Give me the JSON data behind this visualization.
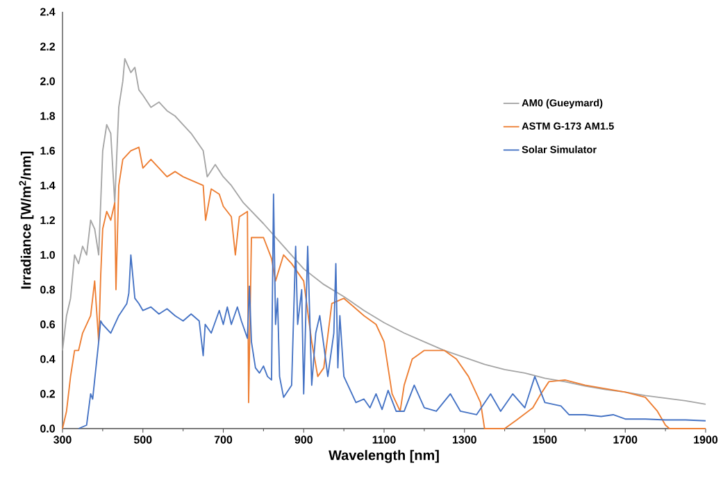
{
  "chart_data": {
    "type": "line",
    "xlabel": "Wavelength [nm]",
    "ylabel": "Irradiance [W/m$^{2}$/nm]",
    "xlim": [
      300,
      1900
    ],
    "xticks": [
      300,
      500,
      700,
      900,
      1100,
      1300,
      1500,
      1700,
      1900
    ],
    "ylim": [
      0,
      2.4
    ],
    "yticks": [
      {
        "value": 0,
        "label": "0.0"
      },
      {
        "value": 0.2,
        "label": "0.2"
      },
      {
        "value": 0.4,
        "label": "0.4"
      },
      {
        "value": 0.6,
        "label": "0.6"
      },
      {
        "value": 0.8,
        "label": "0.8"
      },
      {
        "value": 1,
        "label": "1.0"
      },
      {
        "value": 1.2,
        "label": "1.2"
      },
      {
        "value": 1.4,
        "label": "1.4"
      },
      {
        "value": 1.6,
        "label": "1.6"
      },
      {
        "value": 1.8,
        "label": "1.8"
      },
      {
        "value": 2,
        "label": "2.0"
      },
      {
        "value": 2.2,
        "label": "2.2"
      },
      {
        "value": 2.4,
        "label": "2.4"
      }
    ],
    "grid": false,
    "legend": "right",
    "marker": "none",
    "line_style": "solid",
    "series": [
      {
        "name": "AM0 (Gueymard)",
        "color": "#a5a5a5",
        "x": [
          300,
          310,
          320,
          330,
          340,
          350,
          360,
          370,
          380,
          390,
          400,
          410,
          420,
          430,
          440,
          450,
          455,
          470,
          480,
          490,
          500,
          520,
          540,
          560,
          580,
          600,
          620,
          650,
          660,
          680,
          700,
          720,
          750,
          800,
          850,
          900,
          950,
          1000,
          1050,
          1100,
          1150,
          1200,
          1250,
          1300,
          1350,
          1400,
          1450,
          1500,
          1550,
          1600,
          1650,
          1700,
          1750,
          1800,
          1850,
          1900
        ],
        "values": [
          0.45,
          0.65,
          0.75,
          1.0,
          0.95,
          1.05,
          1.0,
          1.2,
          1.15,
          1.0,
          1.6,
          1.75,
          1.7,
          1.3,
          1.85,
          2.0,
          2.13,
          2.05,
          2.08,
          1.95,
          1.92,
          1.85,
          1.88,
          1.83,
          1.8,
          1.75,
          1.7,
          1.6,
          1.45,
          1.52,
          1.45,
          1.4,
          1.3,
          1.18,
          1.05,
          0.92,
          0.83,
          0.76,
          0.68,
          0.61,
          0.55,
          0.5,
          0.45,
          0.41,
          0.37,
          0.34,
          0.32,
          0.29,
          0.27,
          0.245,
          0.225,
          0.21,
          0.19,
          0.175,
          0.16,
          0.14
        ]
      },
      {
        "name": "ASTM G-173 AM1.5",
        "color": "#ed7d31",
        "x": [
          300,
          310,
          320,
          330,
          340,
          350,
          360,
          370,
          380,
          390,
          395,
          400,
          410,
          420,
          430,
          433,
          440,
          450,
          470,
          490,
          500,
          520,
          540,
          560,
          580,
          600,
          630,
          650,
          656,
          670,
          690,
          700,
          720,
          730,
          740,
          760,
          763,
          770,
          800,
          820,
          830,
          850,
          870,
          900,
          920,
          935,
          950,
          970,
          1000,
          1050,
          1080,
          1100,
          1120,
          1140,
          1150,
          1170,
          1200,
          1250,
          1280,
          1310,
          1340,
          1350,
          1400,
          1430,
          1470,
          1490,
          1510,
          1550,
          1600,
          1650,
          1700,
          1750,
          1780,
          1800,
          1810,
          1900
        ],
        "values": [
          0,
          0.1,
          0.3,
          0.45,
          0.45,
          0.55,
          0.6,
          0.65,
          0.85,
          0.5,
          0.88,
          1.15,
          1.25,
          1.2,
          1.3,
          0.8,
          1.4,
          1.55,
          1.6,
          1.62,
          1.5,
          1.55,
          1.5,
          1.45,
          1.48,
          1.45,
          1.42,
          1.4,
          1.2,
          1.38,
          1.35,
          1.28,
          1.22,
          1.0,
          1.22,
          1.25,
          0.15,
          1.1,
          1.1,
          0.98,
          0.85,
          1.0,
          0.95,
          0.85,
          0.5,
          0.3,
          0.35,
          0.72,
          0.75,
          0.65,
          0.6,
          0.5,
          0.2,
          0.1,
          0.25,
          0.4,
          0.45,
          0.45,
          0.4,
          0.3,
          0.15,
          0,
          0,
          0.05,
          0.12,
          0.2,
          0.27,
          0.28,
          0.25,
          0.23,
          0.21,
          0.18,
          0.1,
          0.02,
          0,
          0
        ]
      },
      {
        "name": "Solar Simulator",
        "color": "#4472c4",
        "x": [
          340,
          360,
          370,
          375,
          390,
          395,
          400,
          420,
          440,
          460,
          465,
          470,
          480,
          490,
          500,
          520,
          540,
          560,
          580,
          600,
          620,
          640,
          650,
          655,
          670,
          690,
          700,
          710,
          720,
          735,
          745,
          760,
          765,
          770,
          780,
          790,
          800,
          810,
          820,
          825,
          830,
          835,
          840,
          850,
          870,
          880,
          885,
          895,
          900,
          910,
          920,
          930,
          940,
          950,
          960,
          975,
          980,
          985,
          990,
          1000,
          1030,
          1050,
          1065,
          1080,
          1095,
          1110,
          1130,
          1150,
          1175,
          1200,
          1230,
          1265,
          1290,
          1330,
          1365,
          1390,
          1420,
          1450,
          1475,
          1500,
          1540,
          1560,
          1600,
          1640,
          1670,
          1700,
          1750,
          1800,
          1850,
          1900
        ],
        "values": [
          0,
          0.02,
          0.2,
          0.17,
          0.5,
          0.62,
          0.6,
          0.55,
          0.65,
          0.72,
          0.78,
          1.0,
          0.75,
          0.72,
          0.68,
          0.7,
          0.66,
          0.69,
          0.65,
          0.62,
          0.66,
          0.62,
          0.42,
          0.6,
          0.55,
          0.68,
          0.6,
          0.7,
          0.6,
          0.7,
          0.62,
          0.52,
          0.82,
          0.5,
          0.35,
          0.32,
          0.36,
          0.3,
          0.28,
          1.35,
          0.6,
          0.75,
          0.3,
          0.18,
          0.25,
          1.05,
          0.6,
          0.8,
          0.2,
          1.05,
          0.25,
          0.55,
          0.65,
          0.48,
          0.3,
          0.55,
          0.95,
          0.35,
          0.65,
          0.3,
          0.15,
          0.17,
          0.12,
          0.2,
          0.11,
          0.22,
          0.1,
          0.1,
          0.25,
          0.12,
          0.1,
          0.2,
          0.1,
          0.08,
          0.2,
          0.1,
          0.2,
          0.12,
          0.3,
          0.15,
          0.13,
          0.08,
          0.08,
          0.07,
          0.08,
          0.055,
          0.055,
          0.05,
          0.05,
          0.045
        ]
      }
    ]
  }
}
